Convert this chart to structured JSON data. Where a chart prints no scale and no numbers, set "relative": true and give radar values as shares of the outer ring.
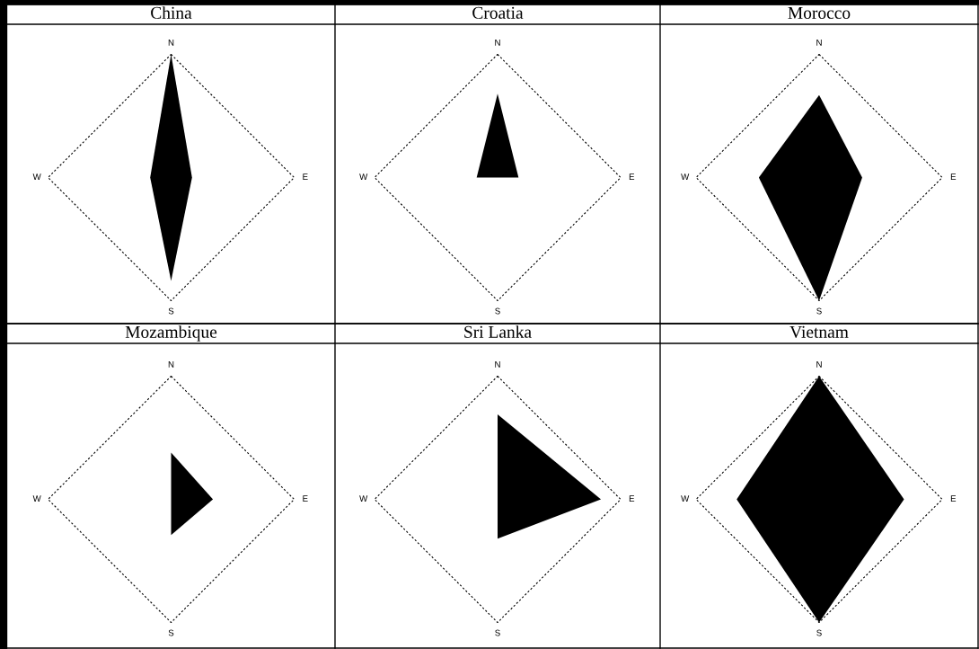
{
  "chart_data": [
    {
      "type": "radar",
      "title": "China",
      "categories": [
        "N",
        "E",
        "S",
        "W"
      ],
      "relative": true,
      "grid": true,
      "series": [
        {
          "color": "#000000",
          "values": [
            1.0,
            0.17,
            0.84,
            0.17
          ]
        }
      ]
    },
    {
      "type": "radar",
      "title": "Croatia",
      "categories": [
        "N",
        "E",
        "S",
        "W"
      ],
      "relative": true,
      "grid": true,
      "series": [
        {
          "color": "#000000",
          "values": [
            0.68,
            0.17,
            0.0,
            0.17
          ]
        }
      ]
    },
    {
      "type": "radar",
      "title": "Morocco",
      "categories": [
        "N",
        "E",
        "S",
        "W"
      ],
      "relative": true,
      "grid": true,
      "series": [
        {
          "color": "#000000",
          "values": [
            0.67,
            0.35,
            1.0,
            0.49
          ]
        }
      ]
    },
    {
      "type": "radar",
      "title": "Mozambique",
      "categories": [
        "N",
        "E",
        "S",
        "W"
      ],
      "relative": true,
      "grid": true,
      "series": [
        {
          "color": "#000000",
          "values": [
            0.38,
            0.34,
            0.29,
            0.0
          ]
        }
      ]
    },
    {
      "type": "radar",
      "title": "Sri Lanka",
      "categories": [
        "N",
        "E",
        "S",
        "W"
      ],
      "relative": true,
      "grid": true,
      "series": [
        {
          "color": "#000000",
          "values": [
            0.69,
            0.84,
            0.32,
            0.0
          ]
        }
      ]
    },
    {
      "type": "radar",
      "title": "Vietnam",
      "categories": [
        "N",
        "E",
        "S",
        "W"
      ],
      "relative": true,
      "grid": true,
      "series": [
        {
          "color": "#000000",
          "values": [
            1.0,
            0.69,
            1.0,
            0.67
          ]
        }
      ]
    }
  ]
}
